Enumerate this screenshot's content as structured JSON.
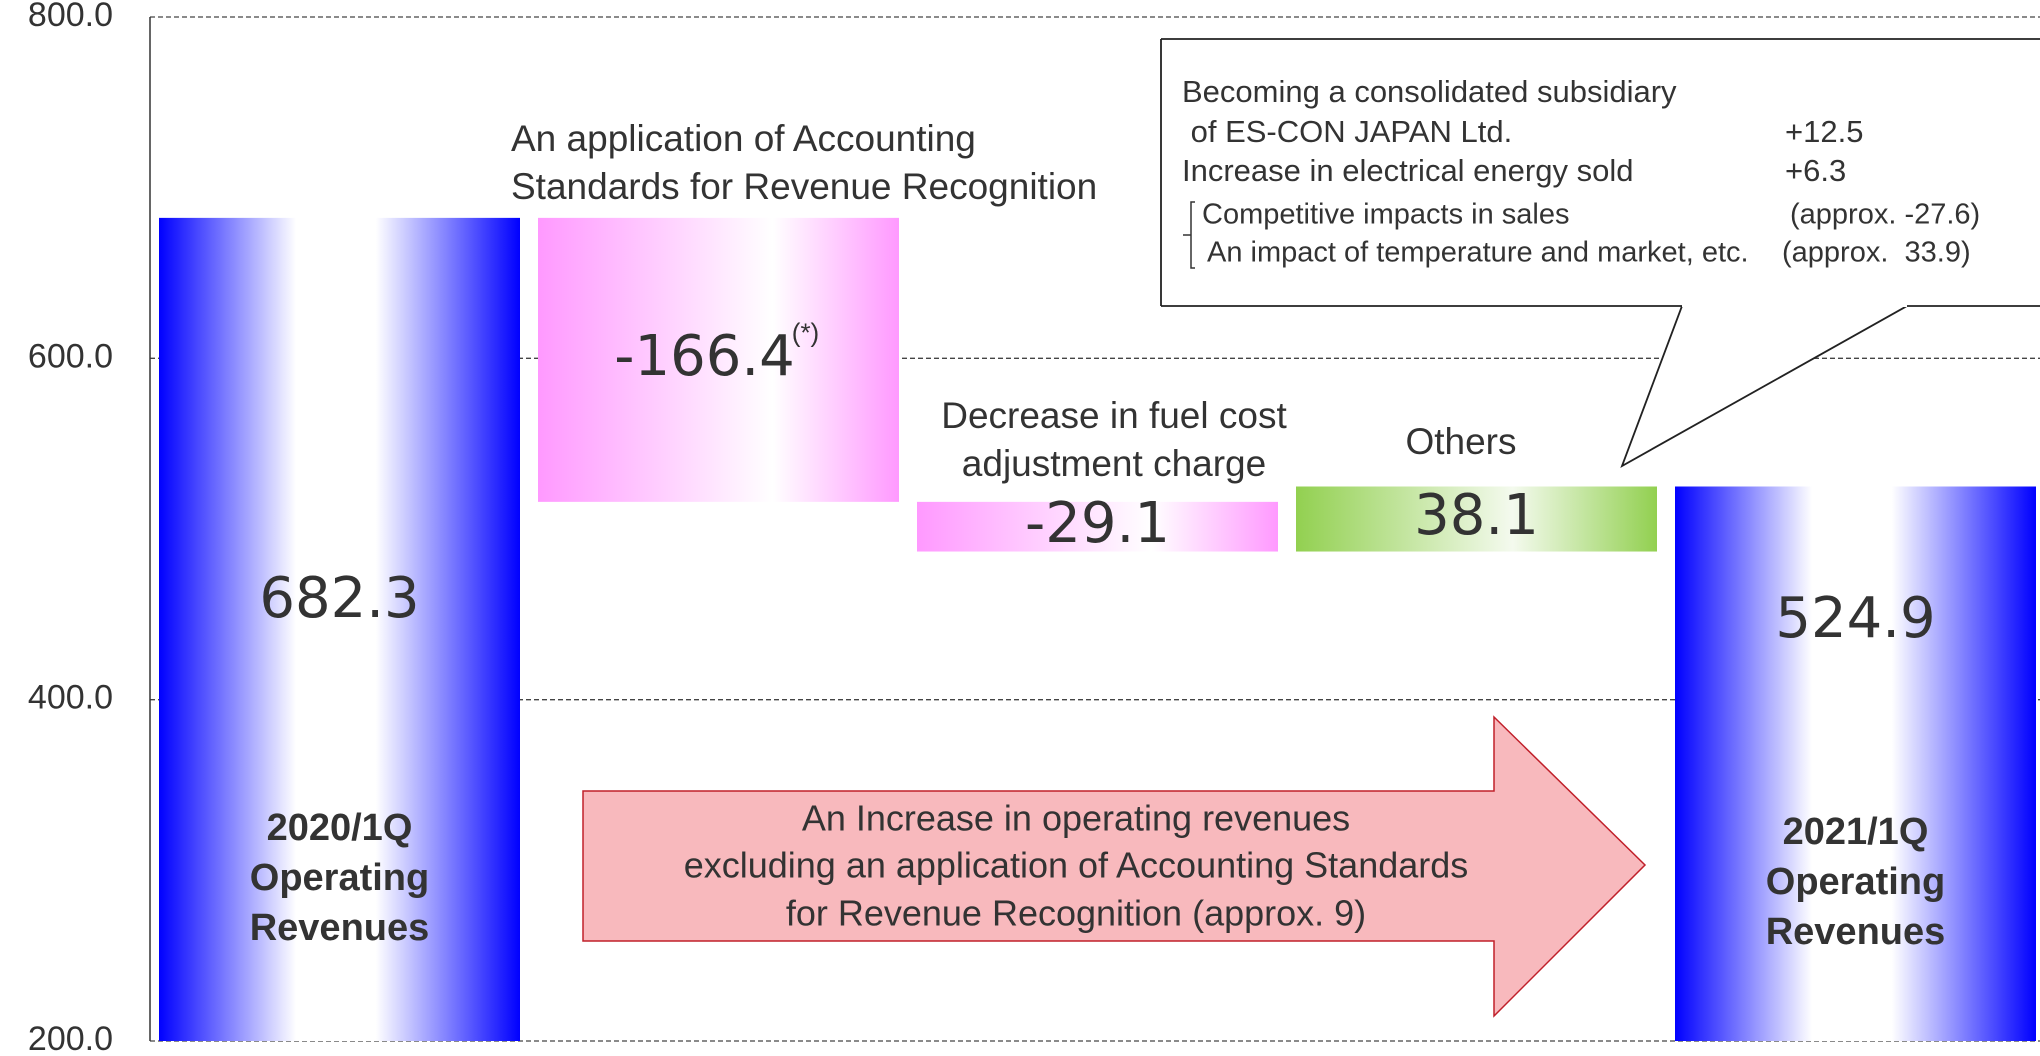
{
  "chart_data": {
    "type": "waterfall",
    "categories": [
      [
        "2020/1Q",
        "Operating",
        "Revenues"
      ],
      [
        "An application of Accounting",
        "Standards for Revenue Recognition"
      ],
      [
        "Decrease in fuel cost",
        "adjustment charge"
      ],
      [
        "Others"
      ],
      [
        "2021/1Q",
        "Operating",
        "Revenues"
      ]
    ],
    "values": [
      682.3,
      -166.4,
      -29.1,
      38.1,
      524.9
    ],
    "is_total": [
      true,
      false,
      false,
      false,
      true
    ],
    "value_notes": [
      null,
      "(*)",
      null,
      null,
      null
    ],
    "colors": {
      "total": "#0000ff",
      "decrease": "#ff99ff",
      "increase": "#92d050"
    },
    "ylim": [
      200,
      800
    ],
    "yticks": [
      {
        "value": 200,
        "label": "200.0"
      },
      {
        "value": 400,
        "label": "400.0"
      },
      {
        "value": 600,
        "label": "600.0"
      },
      {
        "value": 800,
        "label": "800.0"
      }
    ],
    "grid": true,
    "callout": [
      {
        "text": "Becoming a consolidated subsidiary",
        "value": null
      },
      {
        "text": " of ES-CON JAPAN Ltd.",
        "value": "+12.5"
      },
      {
        "text": "Increase in electrical energy sold",
        "value": "+6.3"
      },
      {
        "text": "Competitive impacts in sales",
        "value": "(approx. -27.6)"
      },
      {
        "text": "An impact of temperature and market, etc.",
        "value": "(approx.  33.9)"
      }
    ],
    "arrow_text": [
      "An Increase in operating revenues",
      "excluding an application of Accounting Standards",
      "for Revenue Recognition  (approx. 9)"
    ]
  }
}
